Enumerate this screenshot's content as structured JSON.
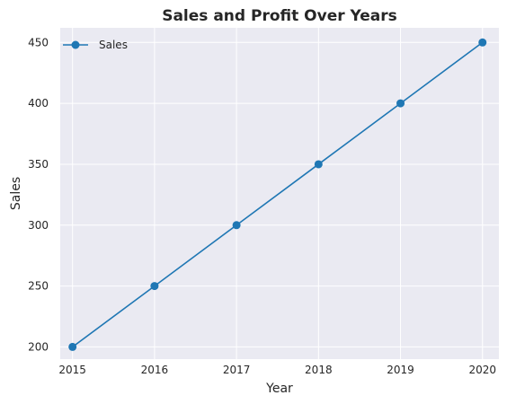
{
  "chart_data": {
    "type": "line",
    "title": "Sales and Profit Over Years",
    "xlabel": "Year",
    "ylabel": "Sales",
    "x": [
      2015,
      2016,
      2017,
      2018,
      2019,
      2020
    ],
    "xticks": [
      "2015",
      "2016",
      "2017",
      "2018",
      "2019",
      "2020"
    ],
    "yticks": [
      200,
      250,
      300,
      350,
      400,
      450
    ],
    "ylim": [
      190,
      462
    ],
    "xlim": [
      2014.85,
      2020.2
    ],
    "grid": true,
    "legend_position": "top-left",
    "series": [
      {
        "name": "Sales",
        "color": "#1f77b4",
        "marker": "circle",
        "values": [
          200,
          250,
          300,
          350,
          400,
          450
        ]
      }
    ],
    "colors": {
      "background": "#eaeaf2",
      "grid": "#ffffff",
      "text": "#262626"
    }
  }
}
